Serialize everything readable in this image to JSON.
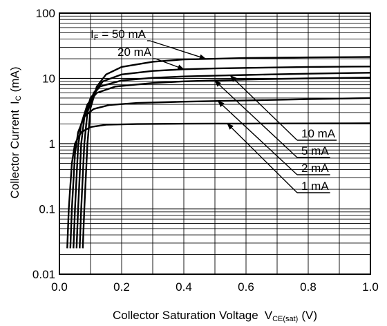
{
  "chart_data": {
    "type": "line",
    "title": "",
    "xlabel": {
      "text": "Collector Saturation Voltage",
      "symbol": "V",
      "symbol_sub": "CE(sat)",
      "unit": "(V)"
    },
    "ylabel": {
      "text": "Collector Current",
      "symbol": "I",
      "symbol_sub": "C",
      "unit": "(mA)"
    },
    "xlim": [
      0.0,
      1.0
    ],
    "ylim": [
      0.01,
      100
    ],
    "yscale": "log",
    "grid": true,
    "x_ticks": [
      "0.0",
      "0.2",
      "0.4",
      "0.6",
      "0.8",
      "1.0"
    ],
    "y_ticks": [
      "0.01",
      "0.1",
      "1",
      "10",
      "100"
    ],
    "legend_parameter": {
      "symbol": "I",
      "symbol_sub": "F",
      "prefix": " = "
    },
    "series": [
      {
        "name": "50 mA",
        "label": "50 mA",
        "x": [
          0.075,
          0.08,
          0.09,
          0.1,
          0.12,
          0.15,
          0.2,
          0.3,
          0.4,
          0.5,
          0.6,
          0.8,
          1.0
        ],
        "y": [
          0.025,
          0.1,
          1.0,
          3.5,
          7.5,
          11.5,
          15.0,
          18.0,
          19.5,
          20.0,
          20.5,
          21.0,
          21.3
        ]
      },
      {
        "name": "20 mA",
        "label": "20 mA",
        "x": [
          0.065,
          0.07,
          0.08,
          0.09,
          0.11,
          0.14,
          0.2,
          0.3,
          0.4,
          0.5,
          0.6,
          0.8,
          1.0
        ],
        "y": [
          0.025,
          0.1,
          1.0,
          3.0,
          6.0,
          9.0,
          11.5,
          13.0,
          13.8,
          14.2,
          14.5,
          15.0,
          15.2
        ]
      },
      {
        "name": "10 mA",
        "label": "10 mA",
        "x": [
          0.055,
          0.06,
          0.07,
          0.08,
          0.1,
          0.13,
          0.2,
          0.3,
          0.4,
          0.5,
          0.6,
          0.8,
          1.0
        ],
        "y": [
          0.025,
          0.1,
          1.0,
          2.5,
          5.0,
          7.5,
          9.3,
          10.2,
          10.7,
          11.0,
          11.3,
          11.8,
          12.2
        ]
      },
      {
        "name": "5 mA",
        "label": "5 mA",
        "x": [
          0.045,
          0.05,
          0.06,
          0.07,
          0.09,
          0.12,
          0.18,
          0.3,
          0.4,
          0.5,
          0.6,
          0.8,
          1.0
        ],
        "y": [
          0.025,
          0.1,
          0.9,
          2.0,
          4.0,
          6.0,
          7.5,
          8.5,
          9.0,
          9.3,
          9.6,
          10.0,
          10.3
        ]
      },
      {
        "name": "2 mA",
        "label": "2 mA",
        "x": [
          0.035,
          0.04,
          0.05,
          0.06,
          0.08,
          0.11,
          0.16,
          0.25,
          0.4,
          0.5,
          0.6,
          0.8,
          1.0
        ],
        "y": [
          0.025,
          0.1,
          0.7,
          1.5,
          2.6,
          3.4,
          3.9,
          4.2,
          4.4,
          4.5,
          4.6,
          4.8,
          5.0
        ]
      },
      {
        "name": "1 mA",
        "label": "1 mA",
        "x": [
          0.025,
          0.03,
          0.04,
          0.05,
          0.07,
          0.1,
          0.15,
          0.25,
          0.4,
          0.5,
          0.6,
          0.8,
          1.0
        ],
        "y": [
          0.025,
          0.1,
          0.5,
          1.0,
          1.5,
          1.8,
          1.95,
          2.0,
          2.02,
          2.03,
          2.03,
          2.04,
          2.05
        ]
      }
    ],
    "annotations": [
      {
        "series": "50 mA",
        "text": "50 mA",
        "with_parameter": true,
        "side": "top-left",
        "point": [
          0.47,
          20.0
        ]
      },
      {
        "series": "20 mA",
        "text": "20 mA",
        "with_parameter": false,
        "side": "top-left",
        "point": [
          0.4,
          13.8
        ]
      },
      {
        "series": "10 mA",
        "text": "10 mA",
        "with_parameter": false,
        "side": "bottom-right",
        "point": [
          0.55,
          11.0
        ]
      },
      {
        "series": "5 mA",
        "text": "5 mA",
        "with_parameter": false,
        "side": "bottom-right",
        "point": [
          0.5,
          9.2
        ]
      },
      {
        "series": "2 mA",
        "text": "2 mA",
        "with_parameter": false,
        "side": "bottom-right",
        "point": [
          0.51,
          4.5
        ]
      },
      {
        "series": "1 mA",
        "text": "1 mA",
        "with_parameter": false,
        "side": "bottom-right",
        "point": [
          0.54,
          2.03
        ]
      }
    ]
  }
}
